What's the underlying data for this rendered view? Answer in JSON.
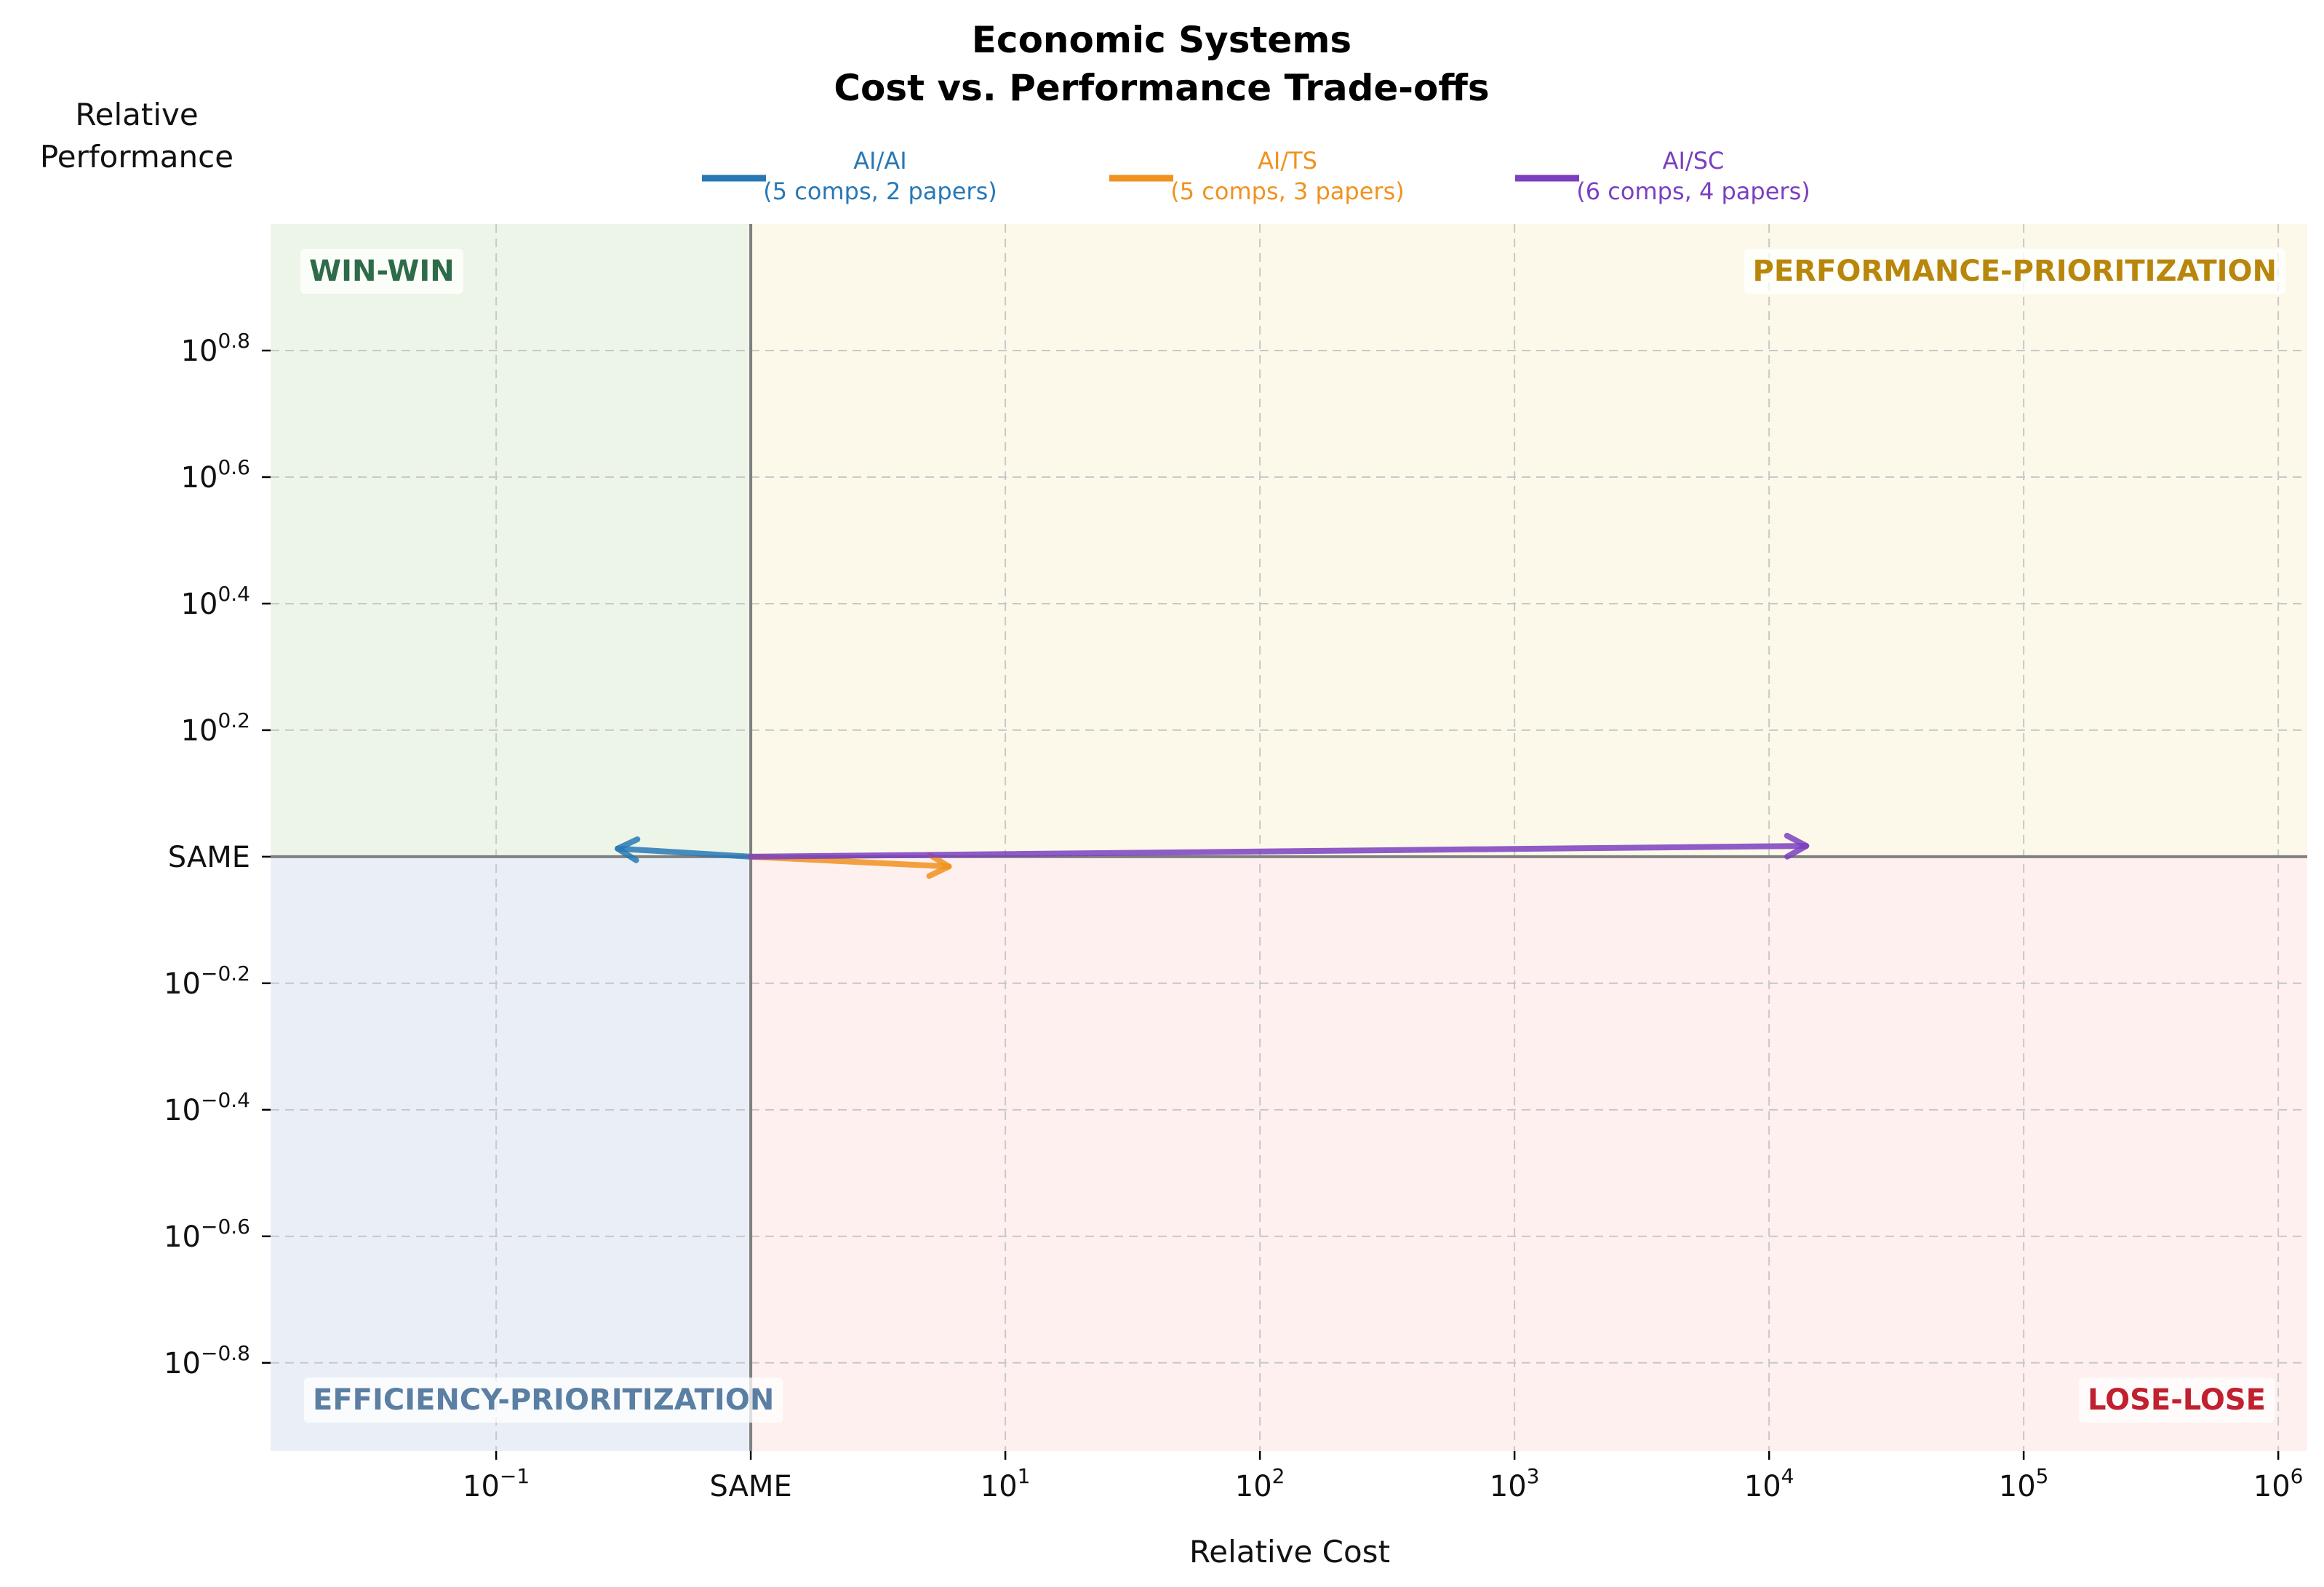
{
  "chart_data": {
    "type": "line",
    "title": "Economic Systems",
    "subtitle": "Cost vs. Performance Trade-offs",
    "xlabel": "Relative Cost",
    "ylabel_line1": "Relative",
    "ylabel_line2": "Performance",
    "x_scale": "log",
    "y_scale": "log",
    "xlim": [
      0.013,
      1300000
    ],
    "ylim": [
      0.115,
      10.0
    ],
    "grid": true,
    "x_ticks": [
      {
        "value": 0.1,
        "base": "10",
        "exp": "−1"
      },
      {
        "value": 1,
        "label": "SAME"
      },
      {
        "value": 10,
        "base": "10",
        "exp": "1"
      },
      {
        "value": 100,
        "base": "10",
        "exp": "2"
      },
      {
        "value": 1000,
        "base": "10",
        "exp": "3"
      },
      {
        "value": 10000,
        "base": "10",
        "exp": "4"
      },
      {
        "value": 100000,
        "base": "10",
        "exp": "5"
      },
      {
        "value": 1000000,
        "base": "10",
        "exp": "6"
      }
    ],
    "y_ticks": [
      {
        "value": 6.3096,
        "base": "10",
        "exp": "0.8"
      },
      {
        "value": 3.9811,
        "base": "10",
        "exp": "0.6"
      },
      {
        "value": 2.5119,
        "base": "10",
        "exp": "0.4"
      },
      {
        "value": 1.5849,
        "base": "10",
        "exp": "0.2"
      },
      {
        "value": 1,
        "label": "SAME"
      },
      {
        "value": 0.631,
        "base": "10",
        "exp": "−0.2"
      },
      {
        "value": 0.3981,
        "base": "10",
        "exp": "−0.4"
      },
      {
        "value": 0.2512,
        "base": "10",
        "exp": "−0.6"
      },
      {
        "value": 0.1585,
        "base": "10",
        "exp": "−0.8"
      }
    ],
    "quadrants": [
      {
        "label": "WIN-WIN",
        "region": "top-left",
        "fill": "#edf5e8",
        "color": "#2e6b4a"
      },
      {
        "label": "PERFORMANCE-PRIORITIZATION",
        "region": "top-right",
        "fill": "#fcf9ea",
        "color": "#b8860b"
      },
      {
        "label": "EFFICIENCY-PRIORITIZATION",
        "region": "bottom-left",
        "fill": "#eaeff7",
        "color": "#5b7fa3"
      },
      {
        "label": "LOSE-LOSE",
        "region": "bottom-right",
        "fill": "#fff0f0",
        "color": "#c0202f"
      }
    ],
    "series": [
      {
        "name": "AI/AI",
        "detail": "(5 comps, 2 papers)",
        "color": "#2878b5",
        "x": [
          1,
          0.3
        ],
        "y": [
          1,
          1.03
        ]
      },
      {
        "name": "AI/TS",
        "detail": "(5 comps, 3 papers)",
        "color": "#f0921f",
        "x": [
          1,
          6
        ],
        "y": [
          1,
          0.965
        ]
      },
      {
        "name": "AI/SC",
        "detail": "(6 comps, 4 papers)",
        "color": "#7b3fbf",
        "x": [
          1,
          14000
        ],
        "y": [
          1,
          1.04
        ]
      }
    ],
    "legend_position": "top-center"
  }
}
